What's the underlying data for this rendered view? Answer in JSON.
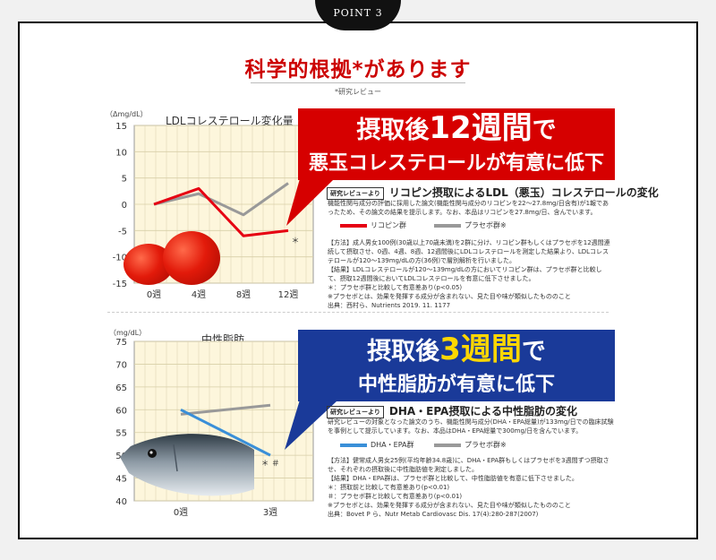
{
  "badge": "POINT 3",
  "title": "科学的根拠*があります",
  "subtitle": "*研究レビュー",
  "charts": [
    {
      "unit": "（Δmg/dL）",
      "title": "LDLコレステロール変化量",
      "banner_line1_pre": "摂取後",
      "banner_line1_big": "12週間",
      "banner_line1_post": "で",
      "banner_line2": "悪玉コレステロールが有意に低下",
      "review_tag": "研究レビューより",
      "review_title": "リコピン摂取によるLDL（悪玉）コレステロールの変化",
      "description": "機能性関与成分の評価に採用した論文(機能性関与成分のリコピンを22～27.8mg/日含有)が1報であったため、その論文の結果を提示します。なお、本品はリコピンを27.8mg/日、含んでいます。",
      "legend": [
        "リコピン群",
        "プラセボ群※"
      ],
      "notes": [
        "【方法】成人男女100例(30歳以上70歳未満)を2群に分け、リコピン群もしくはプラセボを12週間連続して摂取させ、0週、4週、8週、12週間後にLDLコレステロールを測定した結果より、LDLコレステロールが120～139mg/dLの方(36例)で層別解析を行いました。",
        "【結果】LDLコレステロールが120～139mg/dLの方においてリコピン群は、プラセボ群と比較して、摂取12週間後においてLDLコレステロールを有意に低下させました。",
        "＊：プラセボ群と比較して有意差あり(p<0.05)",
        "※プラセボとは、効果を発揮する成分が含まれない、見た目や味が類似したもののこと",
        "出典：西村ら、Nutrients 2019. 11. 1177"
      ],
      "marker": "＊"
    },
    {
      "unit": "（mg/dL）",
      "title": "中性脂肪",
      "banner_line1_pre": "摂取後",
      "banner_line1_big": "3週間",
      "banner_line1_post": "で",
      "banner_line2": "中性脂肪が有意に低下",
      "review_tag": "研究レビューより",
      "review_title": "DHA・EPA摂取による中性脂肪の変化",
      "description": "研究レビューの対象となった論文のうち、機能性関与成分(DHA・EPA総量)が133mg/日での臨床試験を事例として提示しています。なお、本品はDHA・EPA総量で300mg/日を含んでいます。",
      "legend": [
        "DHA・EPA群",
        "プラセボ群※"
      ],
      "notes": [
        "【方法】健常成人男女25例(平均年齢34.8歳)に、DHA・EPA群もしくはプラセボを3週間ずつ摂取させ、それぞれの摂取後に中性脂肪値を測定しました。",
        "【結果】DHA・EPA群は、プラセボ群と比較して、中性脂肪値を有意に低下させました。",
        "＊：摂取前と比較して有意差あり(p<0.01)",
        "＃：プラセボ群と比較して有意差あり(p<0.01)",
        "※プラセボとは、効果を発揮する成分が含まれない、見た目や味が類似したもののこと",
        "出典：Bovet P ら、Nutr Metab Cardiovasc Dis. 17(4):280-287(2007)"
      ],
      "marker": "＊ ＃"
    }
  ],
  "chart_data": [
    {
      "type": "line",
      "categories": [
        "0週",
        "4週",
        "8週",
        "12週"
      ],
      "series": [
        {
          "name": "リコピン群",
          "color": "#e60012",
          "values": [
            0,
            3,
            -6,
            -5
          ]
        },
        {
          "name": "プラセボ群※",
          "color": "#999999",
          "values": [
            0,
            2,
            -2,
            4
          ]
        }
      ],
      "ylim": [
        -15,
        15
      ],
      "yticks": [
        15,
        10,
        5,
        0,
        -5,
        -10,
        -15
      ],
      "ylabel": "（Δmg/dL）",
      "title": "LDLコレステロール変化量",
      "grid": true
    },
    {
      "type": "line",
      "categories": [
        "0週",
        "3週"
      ],
      "series": [
        {
          "name": "DHA・EPA群",
          "color": "#3a8fd8",
          "values": [
            60,
            50
          ]
        },
        {
          "name": "プラセボ群※",
          "color": "#999999",
          "values": [
            59,
            61
          ]
        }
      ],
      "ylim": [
        40,
        75
      ],
      "yticks": [
        75,
        70,
        65,
        60,
        55,
        50,
        45,
        40
      ],
      "ylabel": "（mg/dL）",
      "title": "中性脂肪",
      "grid": true
    }
  ]
}
